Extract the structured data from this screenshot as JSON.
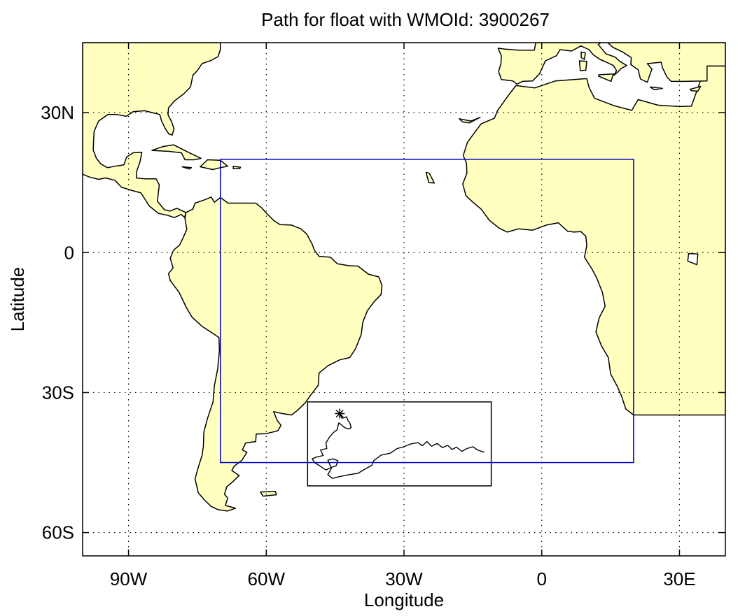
{
  "chart_data": {
    "type": "map-trajectory",
    "title": "Path for float with WMOId: 3900267",
    "xlabel": "Longitude",
    "ylabel": "Latitude",
    "xlim": [
      -100,
      40
    ],
    "ylim": [
      -65,
      45
    ],
    "xticks": [
      {
        "value": -90,
        "label": "90W"
      },
      {
        "value": -60,
        "label": "60W"
      },
      {
        "value": -30,
        "label": "30W"
      },
      {
        "value": 0,
        "label": "0"
      },
      {
        "value": 30,
        "label": "30E"
      }
    ],
    "yticks": [
      {
        "value": 30,
        "label": "30N"
      },
      {
        "value": 0,
        "label": "0"
      },
      {
        "value": -30,
        "label": "30S"
      },
      {
        "value": -60,
        "label": "60S"
      }
    ],
    "grid": true,
    "colors": {
      "land": "#ffffc0",
      "coastline": "#000000",
      "region_box": "#0000cc",
      "track": "#000000",
      "track_box": "#000000"
    },
    "region_box": {
      "lon": [
        -70,
        20
      ],
      "lat": [
        -45,
        20
      ]
    },
    "track_box": {
      "lon": [
        -51,
        -11
      ],
      "lat": [
        -50,
        -32
      ]
    },
    "start_marker": {
      "lon": -44,
      "lat": -34.5,
      "symbol": "asterisk"
    },
    "track": [
      [
        -44,
        -34.5
      ],
      [
        -43.5,
        -35.5
      ],
      [
        -42.5,
        -35.2
      ],
      [
        -42.2,
        -36
      ],
      [
        -41.8,
        -36.5
      ],
      [
        -41.5,
        -37.5
      ],
      [
        -42,
        -37.8
      ],
      [
        -43,
        -37.5
      ],
      [
        -43.5,
        -37
      ],
      [
        -44.2,
        -36.5
      ],
      [
        -44.6,
        -38
      ],
      [
        -45.3,
        -38.5
      ],
      [
        -46.2,
        -39.5
      ],
      [
        -47,
        -40.8
      ],
      [
        -46.8,
        -42
      ],
      [
        -48.2,
        -42.3
      ],
      [
        -47.6,
        -43.5
      ],
      [
        -49,
        -43.8
      ],
      [
        -50,
        -44.2
      ],
      [
        -49.5,
        -45
      ],
      [
        -48.2,
        -45.8
      ],
      [
        -47,
        -46.6
      ],
      [
        -46,
        -46.1
      ],
      [
        -44.8,
        -45.7
      ],
      [
        -44.4,
        -44.6
      ],
      [
        -45.5,
        -44.2
      ],
      [
        -46.6,
        -44.5
      ],
      [
        -45.8,
        -46.2
      ],
      [
        -46.6,
        -47.6
      ],
      [
        -45.6,
        -48.4
      ],
      [
        -44,
        -48
      ],
      [
        -42,
        -47.6
      ],
      [
        -40,
        -47.3
      ],
      [
        -38.5,
        -46.4
      ],
      [
        -37,
        -45.6
      ],
      [
        -36.6,
        -44.6
      ],
      [
        -35,
        -43.4
      ],
      [
        -33,
        -43
      ],
      [
        -31.5,
        -42
      ],
      [
        -30,
        -41.6
      ],
      [
        -28.5,
        -41
      ],
      [
        -27,
        -40.7
      ],
      [
        -26,
        -41.4
      ],
      [
        -25,
        -40.5
      ],
      [
        -24,
        -41.5
      ],
      [
        -22.8,
        -40.9
      ],
      [
        -21.6,
        -41.8
      ],
      [
        -20.5,
        -41.3
      ],
      [
        -19.5,
        -42.2
      ],
      [
        -18.6,
        -41.7
      ],
      [
        -17.4,
        -42.6
      ],
      [
        -16.3,
        -42
      ],
      [
        -15,
        -41.6
      ],
      [
        -14,
        -42.3
      ],
      [
        -12.5,
        -42.8
      ]
    ]
  }
}
